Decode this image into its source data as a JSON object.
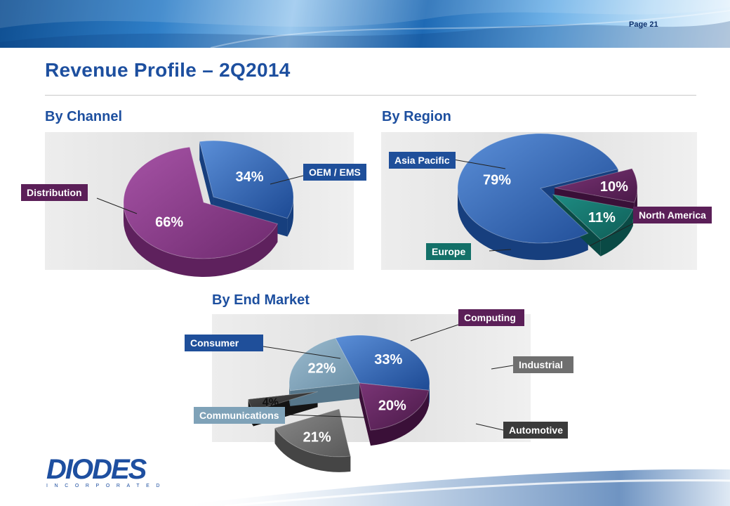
{
  "page": {
    "label": "Page 21",
    "title": "Revenue Profile – 2Q2014"
  },
  "logo": {
    "word": "DIODES",
    "sub": "INCORPORATED",
    "mark": "®"
  },
  "colors": {
    "blue": "#2b5ba8",
    "magenta": "#7a2e79",
    "teal": "#137068",
    "purple": "#5b1f58",
    "lightblue": "#7fa2b8",
    "gray": "#6f6f6f",
    "darkgray": "#3a3a3a",
    "title": "#1d4f9f"
  },
  "chart_data": [
    {
      "type": "pie",
      "title": "By Channel",
      "slices": [
        {
          "label": "OEM / EMS",
          "value": 34,
          "text": "34%",
          "color": "#2d62b0"
        },
        {
          "label": "Distribution",
          "value": 66,
          "text": "66%",
          "color": "#8b3a8c"
        }
      ]
    },
    {
      "type": "pie",
      "title": "By Region",
      "slices": [
        {
          "label": "Asia Pacific",
          "value": 79,
          "text": "79%",
          "color": "#2d62b0"
        },
        {
          "label": "North America",
          "value": 10,
          "text": "10%",
          "color": "#5b1f58"
        },
        {
          "label": "Europe",
          "value": 11,
          "text": "11%",
          "color": "#137068"
        }
      ]
    },
    {
      "type": "pie",
      "title": "By End Market",
      "slices": [
        {
          "label": "Consumer",
          "value": 33,
          "text": "33%",
          "color": "#2d62b0"
        },
        {
          "label": "Computing",
          "value": 20,
          "text": "20%",
          "color": "#5b1f58"
        },
        {
          "label": "Industrial",
          "value": 21,
          "text": "21%",
          "color": "#6f6f6f"
        },
        {
          "label": "Automotive",
          "value": 4,
          "text": "4%",
          "color": "#3a3a3a"
        },
        {
          "label": "Communications",
          "value": 22,
          "text": "22%",
          "color": "#7fa2b8"
        }
      ]
    }
  ]
}
